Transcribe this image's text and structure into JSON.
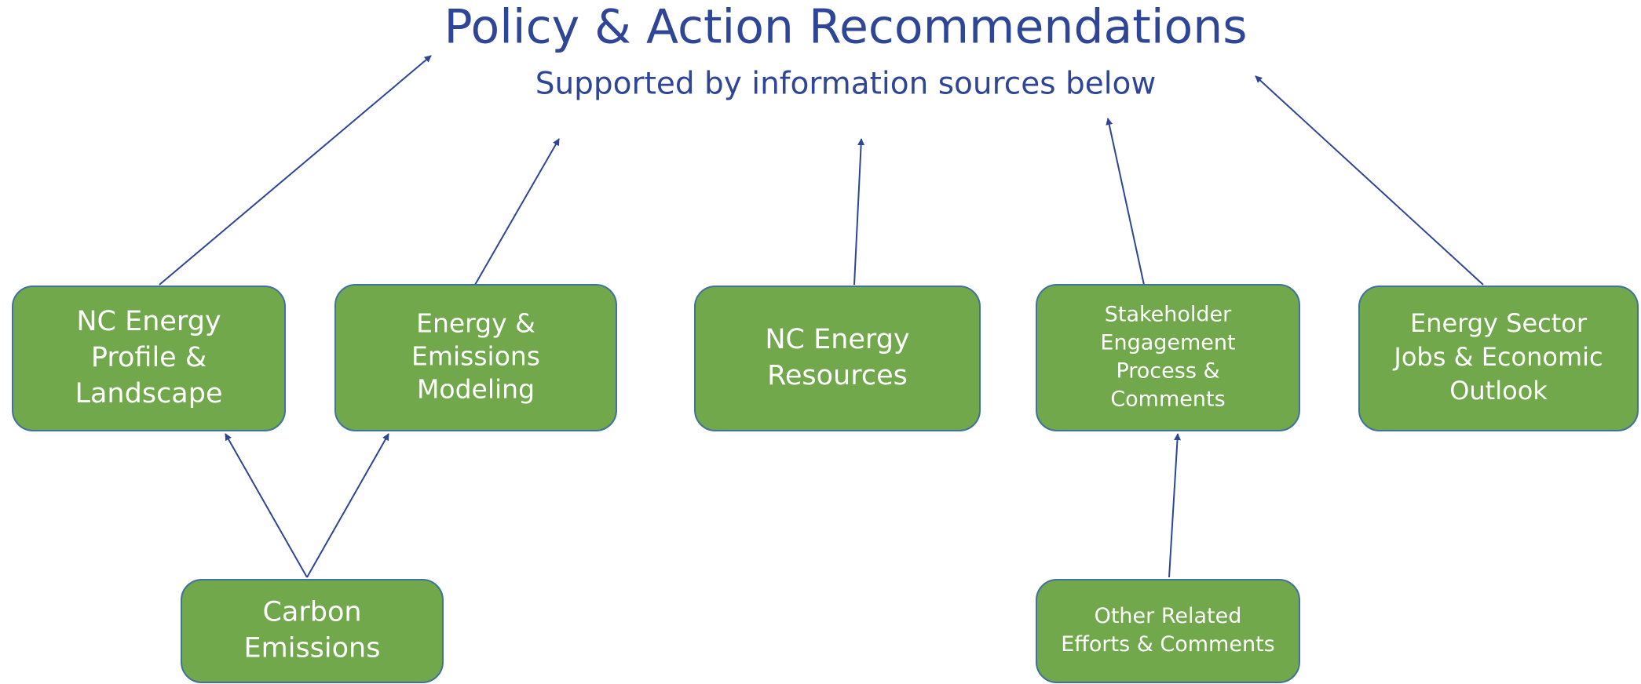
{
  "title": "Policy & Action Recommendations",
  "subtitle": "Supported by information sources below",
  "nodes": [
    {
      "lines": [
        "NC Energy",
        "Profile &",
        "Landscape"
      ]
    },
    {
      "lines": [
        "Energy &",
        "Emissions",
        "Modeling"
      ]
    },
    {
      "lines": [
        "NC Energy",
        "Resources"
      ]
    },
    {
      "lines": [
        "Stakeholder",
        "Engagement",
        "Process &",
        "Comments"
      ]
    },
    {
      "lines": [
        "Energy Sector",
        "Jobs & Economic",
        "Outlook"
      ]
    },
    {
      "lines": [
        "Carbon",
        "Emissions"
      ]
    },
    {
      "lines": [
        "Other Related",
        "Efforts & Comments"
      ]
    }
  ]
}
